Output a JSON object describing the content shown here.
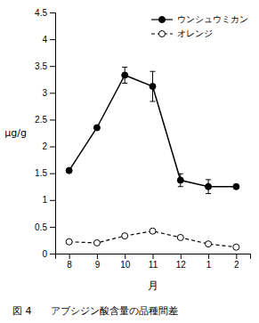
{
  "chart_data": {
    "type": "line",
    "caption": "図 4　　アブシジン酸含量の品種間差",
    "x_label": "月",
    "y_label": "μg/g",
    "categories": [
      "8",
      "9",
      "10",
      "11",
      "12",
      "1",
      "2"
    ],
    "series": [
      {
        "name": "ウンシュウミカン",
        "color": "#000000",
        "marker": "circle",
        "line_style": "solid",
        "values": [
          1.55,
          2.35,
          3.33,
          3.12,
          1.37,
          1.25,
          1.25
        ],
        "errors": [
          0.0,
          0.0,
          0.15,
          0.28,
          0.12,
          0.13,
          0.0
        ]
      },
      {
        "name": "オレンジ",
        "color": "#000000",
        "marker": "circle-open",
        "line_style": "dashed",
        "values": [
          0.22,
          0.2,
          0.33,
          0.42,
          0.3,
          0.18,
          0.12
        ]
      }
    ],
    "ylim": [
      0,
      4.5
    ],
    "yticks": [
      0,
      0.5,
      1,
      1.5,
      2,
      2.5,
      3,
      3.5,
      4,
      4.5
    ],
    "grid": false,
    "legend": "upper-right"
  }
}
